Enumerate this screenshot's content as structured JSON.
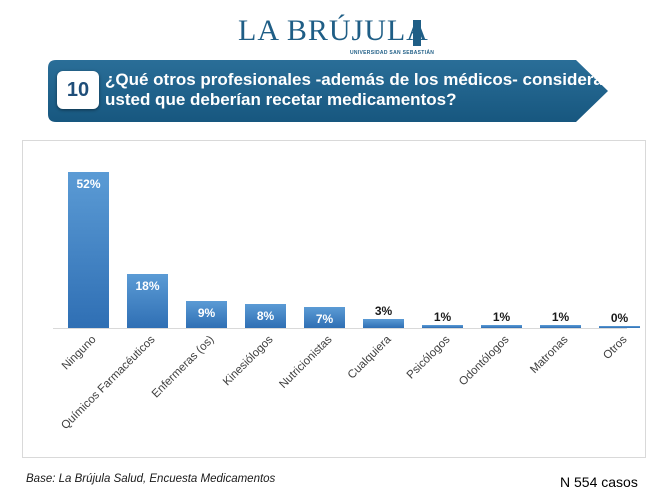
{
  "logo": {
    "name": "LA BRÚJULA",
    "sub": "UNIVERSIDAD SAN SEBASTIÁN"
  },
  "question": {
    "number": "10",
    "text": "¿Qué otros profesionales -además de los médicos- considera usted que deberían recetar medicamentos?"
  },
  "colors": {
    "banner": "#1f5e86",
    "bar_top": "#5b9bd5",
    "bar_bottom": "#2f6fb4"
  },
  "chart_data": {
    "type": "bar",
    "title": "",
    "xlabel": "",
    "ylabel": "",
    "ylim": [
      0,
      60
    ],
    "grid": false,
    "categories": [
      "Ninguno",
      "Químicos Farmacéuticos",
      "Enfermeras (os)",
      "Kinesiólogos",
      "Nutricionistas",
      "Cualquiera",
      "Psicólogos",
      "Odontólogos",
      "Matronas",
      "Otros"
    ],
    "values": [
      52,
      18,
      9,
      8,
      7,
      3,
      1,
      1,
      1,
      0
    ],
    "labels": [
      "52%",
      "18%",
      "9%",
      "8%",
      "7%",
      "3%",
      "1%",
      "1%",
      "1%",
      "0%"
    ]
  },
  "footer": {
    "source": "Base: La Brújula Salud, Encuesta Medicamentos",
    "cases": "N 554 casos"
  }
}
